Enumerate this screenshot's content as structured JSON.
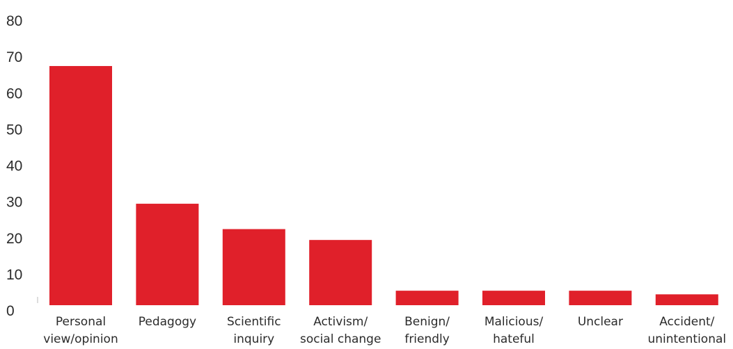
{
  "chart_data": {
    "type": "bar",
    "title": "",
    "xlabel": "",
    "ylabel": "",
    "categories": [
      [
        "Personal",
        "view/opinion"
      ],
      [
        "Pedagogy"
      ],
      [
        "Scientific",
        "inquiry"
      ],
      [
        "Activism/",
        "social change"
      ],
      [
        "Benign/",
        "friendly"
      ],
      [
        "Malicious/",
        "hateful"
      ],
      [
        "Unclear"
      ],
      [
        "Accident/",
        "unintentional"
      ]
    ],
    "values": [
      66,
      28,
      21,
      18,
      4,
      4,
      4,
      3
    ],
    "ylim": [
      0,
      80
    ],
    "yticks": [
      "0",
      "10",
      "20",
      "30",
      "40",
      "50",
      "60",
      "70",
      "80"
    ],
    "bar_color": "#e0202a",
    "grid": false,
    "legend": "none"
  }
}
